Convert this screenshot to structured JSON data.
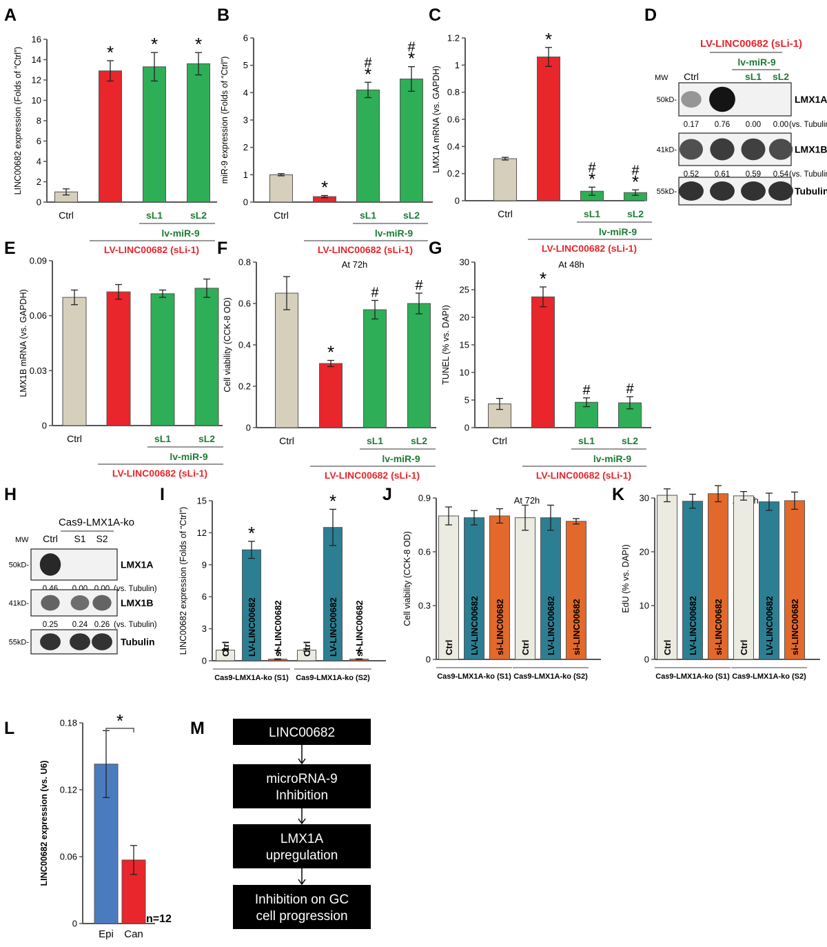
{
  "colors": {
    "ctrl": "#d6cfbc",
    "lv": "#e8262b",
    "green": "#2fae58",
    "teal": "#2c7f92",
    "orange": "#e2692b",
    "ctrl_light": "#ecebe1",
    "blue": "#4b7bbf",
    "red_text": "#e8262b",
    "green_text": "#1f7a36"
  },
  "chart_data": [
    {
      "panel": "A",
      "type": "bar",
      "ylabel": "LINC00682 expression (Folds of “Ctrl”)",
      "ylim": [
        0,
        16
      ],
      "yticks": [
        "0",
        "2",
        "4",
        "6",
        "8",
        "10",
        "12",
        "14",
        "16"
      ],
      "categories": [
        "Ctrl",
        "LV-LINC00682 (sLi-1)",
        "sL1",
        "sL2"
      ],
      "values": [
        1.0,
        12.9,
        13.3,
        13.6
      ],
      "errors": [
        0.3,
        1.0,
        1.4,
        1.1
      ],
      "marks": [
        "",
        "*",
        "*",
        "*"
      ],
      "xlabels": [
        "Ctrl",
        "",
        "sL1",
        "sL2"
      ],
      "sub_label": "lv-miR-9",
      "group_label": "LV-LINC00682 (sLi-1)"
    },
    {
      "panel": "B",
      "type": "bar",
      "ylabel": "miR-9 expression (Folds of “Ctrl”)",
      "ylim": [
        0,
        6
      ],
      "yticks": [
        "0",
        "1",
        "2",
        "3",
        "4",
        "5",
        "6"
      ],
      "categories": [
        "Ctrl",
        "LV-LINC00682 (sLi-1)",
        "sL1",
        "sL2"
      ],
      "values": [
        1.0,
        0.2,
        4.1,
        4.5
      ],
      "errors": [
        0.04,
        0.04,
        0.28,
        0.45
      ],
      "marks": [
        "",
        "*",
        "#*",
        "#*"
      ],
      "xlabels": [
        "Ctrl",
        "",
        "sL1",
        "sL2"
      ],
      "sub_label": "lv-miR-9",
      "group_label": "LV-LINC00682 (sLi-1)"
    },
    {
      "panel": "C",
      "type": "bar",
      "ylabel": "LMX1A mRNA (vs. GAPDH)",
      "ylim": [
        0,
        1.2
      ],
      "yticks": [
        "0",
        "0.2",
        "0.4",
        "0.6",
        "0.8",
        "1",
        "1.2"
      ],
      "categories": [
        "Ctrl",
        "LV-LINC00682 (sLi-1)",
        "sL1",
        "sL2"
      ],
      "values": [
        0.31,
        1.06,
        0.07,
        0.06
      ],
      "errors": [
        0.01,
        0.07,
        0.03,
        0.02
      ],
      "marks": [
        "",
        "*",
        "#*",
        "#*"
      ],
      "xlabels": [
        "Ctrl",
        "",
        "sL1",
        "sL2"
      ],
      "sub_label": "lv-miR-9",
      "group_label": "LV-LINC00682 (sLi-1)"
    },
    {
      "panel": "E",
      "type": "bar",
      "ylabel": "LMX1B mRNA (vs. GAPDH)",
      "ylim": [
        0,
        0.09
      ],
      "yticks": [
        "0",
        "0.03",
        "0.06",
        "0.09"
      ],
      "categories": [
        "Ctrl",
        "LV-LINC00682 (sLi-1)",
        "sL1",
        "sL2"
      ],
      "values": [
        0.07,
        0.073,
        0.072,
        0.075
      ],
      "errors": [
        0.004,
        0.004,
        0.002,
        0.005
      ],
      "marks": [
        "",
        "",
        "",
        ""
      ],
      "xlabels": [
        "Ctrl",
        "",
        "sL1",
        "sL2"
      ],
      "sub_label": "lv-miR-9",
      "group_label": "LV-LINC00682 (sLi-1)"
    },
    {
      "panel": "F",
      "type": "bar",
      "title": "At 72h",
      "ylabel": "Cell viability (CCK-8 OD)",
      "ylim": [
        0,
        0.8
      ],
      "yticks": [
        "0",
        "0.2",
        "0.4",
        "0.6",
        "0.8"
      ],
      "categories": [
        "Ctrl",
        "LV-LINC00682 (sLi-1)",
        "sL1",
        "sL2"
      ],
      "values": [
        0.65,
        0.31,
        0.57,
        0.6
      ],
      "errors": [
        0.08,
        0.015,
        0.045,
        0.05
      ],
      "marks": [
        "",
        "*",
        "#",
        "#"
      ],
      "xlabels": [
        "Ctrl",
        "",
        "sL1",
        "sL2"
      ],
      "sub_label": "lv-miR-9",
      "group_label": "LV-LINC00682 (sLi-1)"
    },
    {
      "panel": "G",
      "type": "bar",
      "title": "At 48h",
      "ylabel": "TUNEL (% vs. DAPI)",
      "ylim": [
        0,
        30
      ],
      "yticks": [
        "0",
        "5",
        "10",
        "15",
        "20",
        "25",
        "30"
      ],
      "categories": [
        "Ctrl",
        "LV-LINC00682 (sLi-1)",
        "sL1",
        "sL2"
      ],
      "values": [
        4.3,
        23.7,
        4.6,
        4.5
      ],
      "errors": [
        1.0,
        1.8,
        0.8,
        1.1
      ],
      "marks": [
        "",
        "*",
        "#",
        "#"
      ],
      "xlabels": [
        "Ctrl",
        "",
        "sL1",
        "sL2"
      ],
      "sub_label": "lv-miR-9",
      "group_label": "LV-LINC00682 (sLi-1)"
    },
    {
      "panel": "I",
      "type": "bar",
      "ylabel": "LINC00682 expression (Folds of “Ctrl”)",
      "ylim": [
        0,
        15
      ],
      "yticks": [
        "0",
        "3",
        "6",
        "9",
        "12",
        "15"
      ],
      "categories": [
        "Ctrl",
        "LV-LINC00682",
        "si-LINC00682",
        "Ctrl",
        "LV-LINC00682",
        "si-LINC00682"
      ],
      "values": [
        1.0,
        10.4,
        0.15,
        1.0,
        12.5,
        0.15
      ],
      "errors": [
        0.05,
        0.8,
        0.03,
        0.12,
        1.7,
        0.03
      ],
      "marks": [
        "",
        "*",
        "*",
        "",
        "*",
        "*"
      ],
      "groups": [
        "Cas9-LMX1A-ko (S1)",
        "Cas9-LMX1A-ko (S2)"
      ]
    },
    {
      "panel": "J",
      "type": "bar",
      "title": "At 72h",
      "ylabel": "Cell viability (CCK-8 OD)",
      "ylim": [
        0,
        0.9
      ],
      "yticks": [
        "0",
        "0.3",
        "0.6",
        "0.9"
      ],
      "categories": [
        "Ctrl",
        "LV-LINC00682",
        "si-LINC00682",
        "Ctrl",
        "LV-LINC00682",
        "si-LINC00682"
      ],
      "values": [
        0.8,
        0.79,
        0.8,
        0.79,
        0.79,
        0.77
      ],
      "errors": [
        0.05,
        0.04,
        0.04,
        0.07,
        0.07,
        0.015
      ],
      "marks": [
        "",
        "",
        "",
        "",
        "",
        ""
      ],
      "groups": [
        "Cas9-LMX1A-ko (S1)",
        "Cas9-LMX1A-ko (S2)"
      ]
    },
    {
      "panel": "K",
      "type": "bar",
      "title": "At 48h",
      "ylabel": "EdU (% vs. DAPI)",
      "ylim": [
        0,
        30
      ],
      "yticks": [
        "0",
        "10",
        "20",
        "30"
      ],
      "categories": [
        "Ctrl",
        "LV-LINC00682",
        "si-LINC00682",
        "Ctrl",
        "LV-LINC00682",
        "si-LINC00682"
      ],
      "values": [
        30.5,
        29.4,
        30.8,
        30.4,
        29.3,
        29.5
      ],
      "errors": [
        1.2,
        1.3,
        1.5,
        0.8,
        1.6,
        1.6
      ],
      "marks": [
        "",
        "",
        "",
        "",
        "",
        ""
      ],
      "groups": [
        "Cas9-LMX1A-ko (S1)",
        "Cas9-LMX1A-ko (S2)"
      ]
    },
    {
      "panel": "L",
      "type": "bar",
      "ylabel": "LINC00682 expression  (vs. U6)",
      "ylim": [
        0,
        0.18
      ],
      "yticks": [
        "0",
        "0.06",
        "0.12",
        "0.18"
      ],
      "categories": [
        "Epi",
        "Can"
      ],
      "values": [
        0.143,
        0.057
      ],
      "errors": [
        0.03,
        0.013
      ],
      "sig": "*",
      "n_label": "n=12"
    }
  ],
  "blots": {
    "D": {
      "title": "LV-LINC00682 (sLi-1)",
      "sub_title": "lv-miR-9",
      "mw": "MW",
      "lanes": [
        "Ctrl",
        "",
        "sL1",
        "sL2"
      ],
      "rows": [
        {
          "mw": "50kD-",
          "name": "LMX1A",
          "quant": [
            "0.17",
            "0.76",
            "0.00",
            "0.00"
          ],
          "unit": "(vs. Tubulin)",
          "intensity": [
            0.35,
            1.0,
            0,
            0
          ]
        },
        {
          "mw": "41kD-",
          "name": "LMX1B",
          "quant": [
            "0.52",
            "0.61",
            "0.59",
            "0.54"
          ],
          "unit": "(vs. Tubulin)",
          "intensity": [
            0.7,
            0.8,
            0.78,
            0.72
          ]
        },
        {
          "mw": "55kD-",
          "name": "Tubulin",
          "intensity": [
            0.85,
            0.85,
            0.85,
            0.85
          ]
        }
      ]
    },
    "H": {
      "title": "Cas9-LMX1A-ko",
      "mw": "MW",
      "lanes": [
        "Ctrl",
        "S1",
        "S2"
      ],
      "rows": [
        {
          "mw": "50kD-",
          "name": "LMX1A",
          "quant": [
            "0.46",
            "0.00",
            "0.00"
          ],
          "unit": "(vs. Tubulin)",
          "intensity": [
            0.9,
            0,
            0
          ]
        },
        {
          "mw": "41kD-",
          "name": "LMX1B",
          "quant": [
            "0.25",
            "0.24",
            "0.26"
          ],
          "unit": "(vs. Tubulin)",
          "intensity": [
            0.6,
            0.55,
            0.6
          ]
        },
        {
          "mw": "55kD-",
          "name": "Tubulin",
          "intensity": [
            0.85,
            0.85,
            0.85
          ]
        }
      ]
    }
  },
  "flowchart_M": {
    "steps": [
      "LINC00682",
      "microRNA-9\nInhibition",
      "LMX1A\nupregulation",
      "Inhibition on GC\ncell progression"
    ]
  },
  "panel_labels": [
    "A",
    "B",
    "C",
    "D",
    "E",
    "F",
    "G",
    "H",
    "I",
    "J",
    "K",
    "L",
    "M"
  ]
}
